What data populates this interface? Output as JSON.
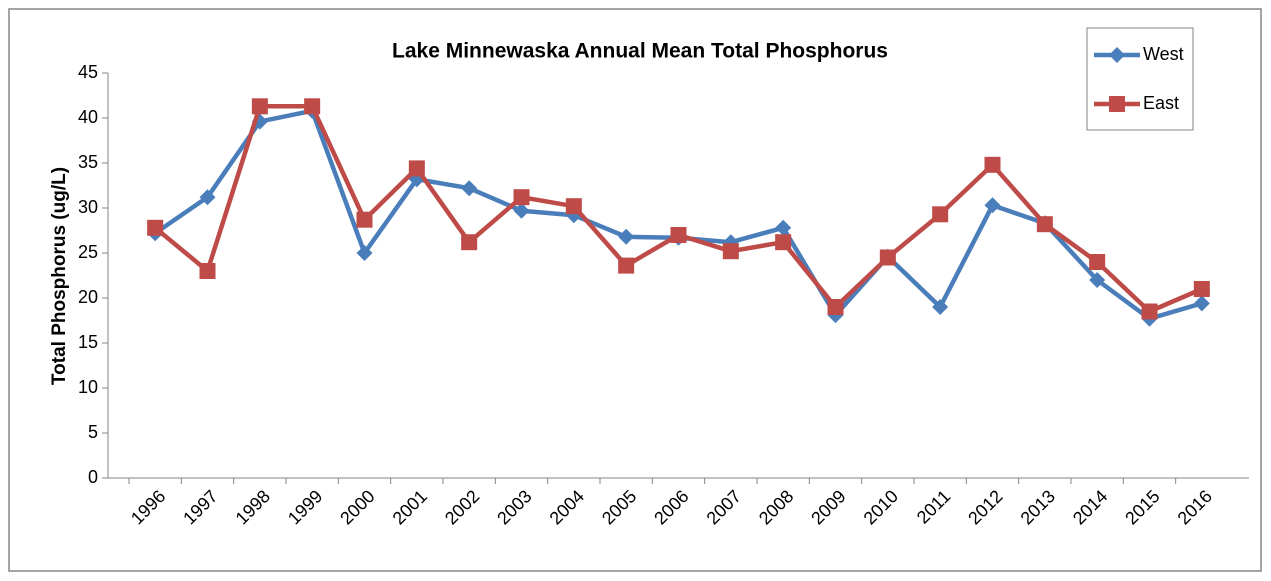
{
  "chart_data": {
    "type": "line",
    "title": "Lake Minnewaska Annual Mean Total Phosphorus",
    "y_label": "Total Phosphorus (ug/L)",
    "categories": [
      "1996",
      "1997",
      "1998",
      "1999",
      "2000",
      "2001",
      "2002",
      "2003",
      "2004",
      "2005",
      "2006",
      "2007",
      "2008",
      "2009",
      "2010",
      "2011",
      "2012",
      "2013",
      "2014",
      "2015",
      "2016"
    ],
    "series": [
      {
        "name": "West",
        "color": "#4a7ebb",
        "marker": "diamond",
        "values": [
          27.2,
          31.2,
          39.6,
          40.8,
          25.0,
          33.2,
          32.2,
          29.7,
          29.2,
          26.8,
          26.7,
          26.2,
          27.8,
          18.1,
          24.6,
          19.0,
          30.3,
          28.3,
          22.0,
          17.7,
          19.4
        ]
      },
      {
        "name": "East",
        "color": "#be4b48",
        "marker": "square",
        "values": [
          27.8,
          23.0,
          41.3,
          41.3,
          28.7,
          34.4,
          26.2,
          31.2,
          30.2,
          23.6,
          27.0,
          25.2,
          26.2,
          19.0,
          24.5,
          29.3,
          34.8,
          28.2,
          24.0,
          18.5,
          21.0
        ]
      }
    ],
    "ylim": [
      0,
      45
    ],
    "yticks": [
      0,
      5,
      10,
      15,
      20,
      25,
      30,
      35,
      40,
      45
    ],
    "grid": false,
    "legend": "top-right"
  }
}
